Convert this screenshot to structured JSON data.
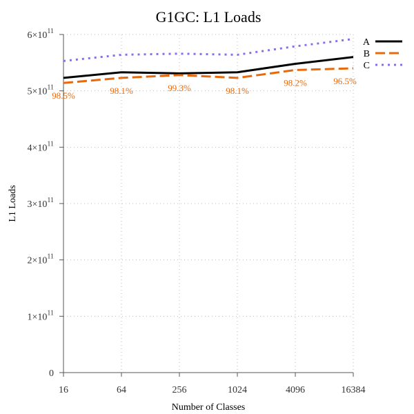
{
  "chart_data": {
    "type": "line",
    "title": "G1GC: L1 Loads",
    "xlabel": "Number of Classes",
    "ylabel": "L1 Loads",
    "x": [
      16,
      64,
      256,
      1024,
      4096,
      16384
    ],
    "x_scale": "log2",
    "ylim": [
      0,
      600000000000
    ],
    "y_ticks": [
      0,
      100000000000,
      200000000000,
      300000000000,
      400000000000,
      500000000000,
      600000000000
    ],
    "y_tick_labels": [
      {
        "base": "0",
        "exp": ""
      },
      {
        "base": "1×10",
        "exp": "11"
      },
      {
        "base": "2×10",
        "exp": "11"
      },
      {
        "base": "3×10",
        "exp": "11"
      },
      {
        "base": "4×10",
        "exp": "11"
      },
      {
        "base": "5×10",
        "exp": "11"
      },
      {
        "base": "6×10",
        "exp": "11"
      }
    ],
    "x_tick_labels": [
      "16",
      "64",
      "256",
      "1024",
      "4096",
      "16384"
    ],
    "grid": true,
    "legend_position": "top-right",
    "series": [
      {
        "name": "A",
        "color": "#000000",
        "style": "solid",
        "values": [
          523000000000,
          533000000000,
          531000000000,
          533000000000,
          548000000000,
          560000000000
        ]
      },
      {
        "name": "B",
        "color": "#e8690c",
        "style": "dashed",
        "values": [
          514000000000,
          523000000000,
          528000000000,
          523000000000,
          537000000000,
          540000000000
        ]
      },
      {
        "name": "C",
        "color": "#8b6cf0",
        "style": "dotted",
        "values": [
          553000000000,
          564000000000,
          566000000000,
          564000000000,
          579000000000,
          592000000000
        ]
      }
    ],
    "annotations": {
      "color": "#e8690c",
      "labels": [
        "98.5%",
        "98.1%",
        "99.3%",
        "98.1%",
        "98.2%",
        "96.5%"
      ]
    }
  }
}
